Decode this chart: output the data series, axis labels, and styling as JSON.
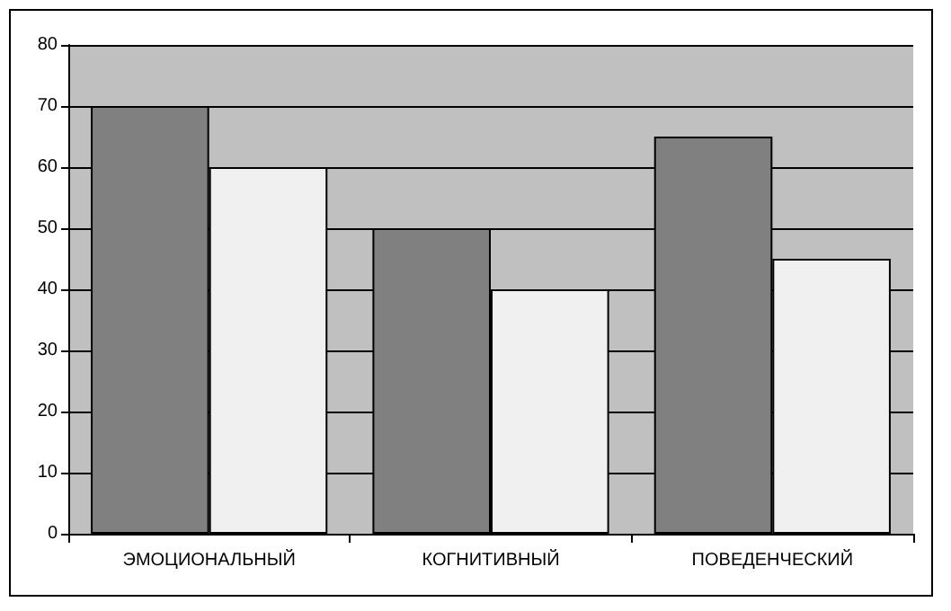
{
  "chart_data": {
    "type": "bar",
    "categories": [
      "ЭМОЦИОНАЛЬНЫЙ",
      "КОГНИТИВНЫЙ",
      "ПОВЕДЕНЧЕСКИЙ"
    ],
    "series": [
      {
        "color": "#808080",
        "values": [
          70,
          50,
          65
        ]
      },
      {
        "color": "#f0f0f0",
        "values": [
          60,
          40,
          45
        ]
      }
    ],
    "ylim": [
      0,
      80
    ],
    "yticks": [
      0,
      10,
      20,
      30,
      40,
      50,
      60,
      70,
      80
    ],
    "grid": "y"
  }
}
